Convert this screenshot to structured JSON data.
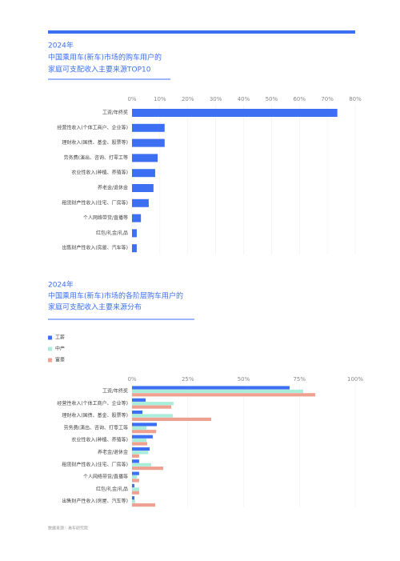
{
  "chart_data": [
    {
      "type": "hbar",
      "title": [
        "2024年",
        "中国乘用车(新车)市场的购车用户的",
        "家庭可支配收入主要来源TOP10"
      ],
      "categories": [
        "工资/年终奖",
        "经营性收入(个体工商户、企业等)",
        "理财收入(国债、基金、股票等)",
        "劳务费(演出、咨询、打零工等",
        "农业性收入(种植、养殖等)",
        "养老金/退休金",
        "租赁财产性收入(住宅、厂房等)",
        "个人网络带货/直播等",
        "红包/礼金/礼品",
        "出售财产性收入(房屋、汽车等)"
      ],
      "values": [
        73.6,
        11.7,
        11.7,
        9.2,
        8.3,
        7.7,
        6.0,
        3.2,
        1.7,
        1.7
      ],
      "color": "#3d6ff2",
      "xlim": [
        0,
        80
      ],
      "xticks": [
        {
          "value": 0,
          "label": "0%"
        },
        {
          "value": 10,
          "label": "10%"
        },
        {
          "value": 20,
          "label": "20%"
        },
        {
          "value": 30,
          "label": "30%"
        },
        {
          "value": 40,
          "label": "40%"
        },
        {
          "value": 50,
          "label": "50%"
        },
        {
          "value": 60,
          "label": "60%"
        },
        {
          "value": 70,
          "label": "70%"
        },
        {
          "value": 80,
          "label": "80%"
        }
      ],
      "grid": true
    },
    {
      "type": "grouped-hbar",
      "title": [
        "2024年",
        "中国乘用车(新车)市场的各阶层购车用户的",
        "家庭可支配收入主要来源分布"
      ],
      "categories": [
        "工资/年终奖",
        "经营性收入(个体工商户、企业等)",
        "理财收入(国债、基金、股票等)",
        "劳务费(演出、咨询、打零工等",
        "农业性收入(种植、养殖等)",
        "养老金/退休金",
        "租赁财产性收入(住宅、厂房等)",
        "个人网络带货/直播等",
        "红包/礼金/礼品",
        "出售财产性收入(房屋、汽车等)"
      ],
      "series": [
        {
          "name": "工薪",
          "color": "#3d6ff2",
          "values": [
            70.6,
            6.1,
            4.7,
            11.1,
            9.3,
            7.9,
            3.2,
            3.2,
            1.1,
            1.1
          ]
        },
        {
          "name": "中产",
          "color": "#a8ecd9",
          "values": [
            76.7,
            18.6,
            18.3,
            6.5,
            6.5,
            7.2,
            8.6,
            2.2,
            3.2,
            1.4
          ]
        },
        {
          "name": "富豪",
          "color": "#eea190",
          "values": [
            82.1,
            17.6,
            35.5,
            10.8,
            6.8,
            3.2,
            14.0,
            3.2,
            3.2,
            10.4
          ]
        }
      ],
      "xlim": [
        0,
        100
      ],
      "xticks": [
        {
          "value": 0,
          "label": "0%"
        },
        {
          "value": 25,
          "label": "25%"
        },
        {
          "value": 50,
          "label": "50%"
        },
        {
          "value": 75,
          "label": "75%"
        },
        {
          "value": 100,
          "label": "100%"
        }
      ],
      "grid": true
    }
  ],
  "source": "数据来源：易车研究院"
}
